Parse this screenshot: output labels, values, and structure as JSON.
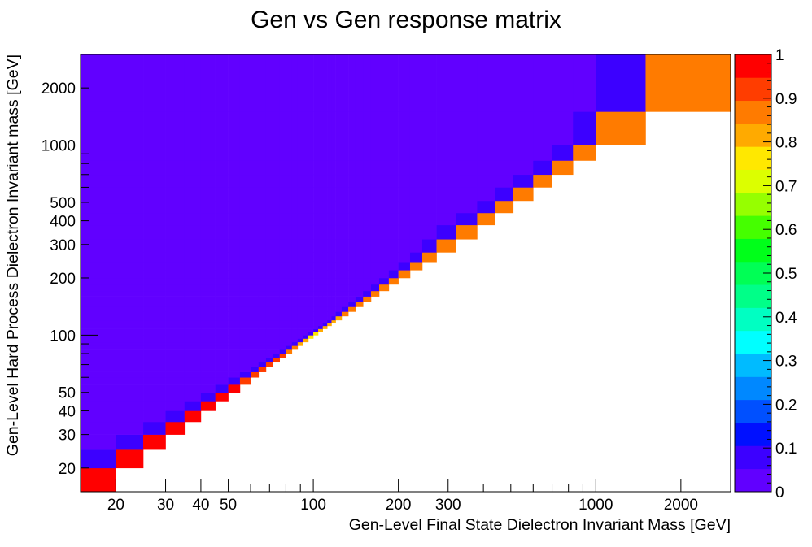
{
  "chart_data": {
    "type": "heatmap",
    "title": "Gen vs Gen response matrix",
    "xlabel": "Gen-Level Final State Dielectron Invariant Mass [GeV]",
    "ylabel": "Gen-Level Hard Process Dielectron Invariant mass [GeV]",
    "x_scale": "log",
    "y_scale": "log",
    "xlim": [
      15,
      3000
    ],
    "ylim": [
      15,
      3000
    ],
    "x_ticks": [
      20,
      30,
      40,
      50,
      100,
      200,
      300,
      1000,
      2000
    ],
    "x_tick_labels": [
      "20",
      "30",
      "40",
      "50",
      "100",
      "200",
      "300",
      "1000",
      "2000"
    ],
    "y_ticks": [
      20,
      30,
      40,
      50,
      100,
      200,
      300,
      400,
      500,
      1000,
      2000
    ],
    "y_tick_labels": [
      "20",
      "30",
      "40",
      "50",
      "100",
      "200",
      "300",
      "400",
      "500",
      "1000",
      "2000"
    ],
    "zlim": [
      0,
      1
    ],
    "colorbar_ticks": [
      0,
      0.1,
      0.2,
      0.3,
      0.4,
      0.5,
      0.6,
      0.7,
      0.8,
      0.9,
      1
    ],
    "colorbar_tick_labels": [
      "0",
      "0.1",
      "0.2",
      "0.3",
      "0.4",
      "0.5",
      "0.6",
      "0.7",
      "0.8",
      "0.9",
      "1"
    ],
    "palette": [
      "#6100ff",
      "#3c00ff",
      "#0010ff",
      "#0050ff",
      "#0088ff",
      "#00bbff",
      "#00ffff",
      "#00ffc2",
      "#00ff88",
      "#00ff55",
      "#00ff1a",
      "#45ff00",
      "#96ff00",
      "#dcff00",
      "#ffe800",
      "#ffaa00",
      "#ff7b00",
      "#ff3d00",
      "#ff0000"
    ],
    "bins_edges": [
      15,
      20,
      25,
      30,
      35,
      40,
      45,
      50,
      55,
      60,
      64,
      68,
      72,
      76,
      80,
      84,
      88,
      92,
      96,
      100,
      104,
      108,
      112,
      116,
      120,
      126,
      133,
      141,
      150,
      160,
      171,
      185,
      200,
      220,
      243,
      273,
      320,
      380,
      440,
      510,
      600,
      700,
      830,
      1000,
      1500,
      3000
    ],
    "diagonal_bins": [
      {
        "bin": 0,
        "value": 0.99
      },
      {
        "bin": 1,
        "value": 0.98
      },
      {
        "bin": 2,
        "value": 0.97
      },
      {
        "bin": 3,
        "value": 0.96
      },
      {
        "bin": 4,
        "value": 0.96
      },
      {
        "bin": 5,
        "value": 0.96
      },
      {
        "bin": 6,
        "value": 0.95
      },
      {
        "bin": 7,
        "value": 0.95
      },
      {
        "bin": 8,
        "value": 0.94
      },
      {
        "bin": 9,
        "value": 0.94
      },
      {
        "bin": 10,
        "value": 0.93
      },
      {
        "bin": 11,
        "value": 0.92
      },
      {
        "bin": 12,
        "value": 0.91
      },
      {
        "bin": 13,
        "value": 0.9
      },
      {
        "bin": 14,
        "value": 0.88
      },
      {
        "bin": 15,
        "value": 0.86
      },
      {
        "bin": 16,
        "value": 0.82
      },
      {
        "bin": 17,
        "value": 0.8
      },
      {
        "bin": 18,
        "value": 0.78
      },
      {
        "bin": 19,
        "value": 0.78
      },
      {
        "bin": 20,
        "value": 0.79
      },
      {
        "bin": 21,
        "value": 0.8
      },
      {
        "bin": 22,
        "value": 0.82
      },
      {
        "bin": 23,
        "value": 0.83
      },
      {
        "bin": 24,
        "value": 0.84
      },
      {
        "bin": 25,
        "value": 0.85
      },
      {
        "bin": 26,
        "value": 0.86
      },
      {
        "bin": 27,
        "value": 0.86
      },
      {
        "bin": 28,
        "value": 0.86
      },
      {
        "bin": 29,
        "value": 0.86
      },
      {
        "bin": 30,
        "value": 0.85
      },
      {
        "bin": 31,
        "value": 0.85
      },
      {
        "bin": 32,
        "value": 0.85
      },
      {
        "bin": 33,
        "value": 0.85
      },
      {
        "bin": 34,
        "value": 0.85
      },
      {
        "bin": 35,
        "value": 0.85
      },
      {
        "bin": 36,
        "value": 0.85
      },
      {
        "bin": 37,
        "value": 0.85
      },
      {
        "bin": 38,
        "value": 0.85
      },
      {
        "bin": 39,
        "value": 0.85
      },
      {
        "bin": 40,
        "value": 0.85
      },
      {
        "bin": 41,
        "value": 0.85
      },
      {
        "bin": 42,
        "value": 0.85
      },
      {
        "bin": 43,
        "value": 0.85
      },
      {
        "bin": 44,
        "value": 0.85
      }
    ],
    "first_offdiagonal_value": 0.08,
    "background_value": 0.03,
    "filled_x_extent_by_y_bin": [
      [
        0,
        8
      ],
      [
        0,
        14
      ],
      [
        0,
        14
      ],
      [
        0,
        19
      ],
      [
        0,
        22
      ],
      [
        0,
        24
      ],
      [
        0,
        26
      ],
      [
        0,
        28
      ],
      [
        0,
        30
      ],
      [
        0,
        31
      ],
      [
        0,
        31
      ],
      [
        0,
        32
      ],
      [
        0,
        32
      ],
      [
        0,
        33
      ],
      [
        0,
        33
      ],
      [
        0,
        33
      ],
      [
        0,
        34
      ],
      [
        0,
        34
      ],
      [
        0,
        34
      ],
      [
        0,
        35
      ],
      [
        0,
        35
      ],
      [
        0,
        35
      ],
      [
        0,
        36
      ],
      [
        0,
        36
      ],
      [
        0,
        36
      ],
      [
        0,
        37
      ],
      [
        0,
        37
      ],
      [
        0,
        37
      ],
      [
        0,
        37
      ],
      [
        0,
        38
      ],
      [
        0,
        38
      ],
      [
        0,
        44
      ],
      [
        0,
        44
      ],
      [
        0,
        44
      ],
      [
        0,
        44
      ],
      [
        0,
        44
      ],
      [
        0,
        44
      ],
      [
        0,
        44
      ],
      [
        0,
        44
      ],
      [
        0,
        44
      ],
      [
        0,
        44
      ],
      [
        0,
        44
      ],
      [
        0,
        44
      ],
      [
        0,
        44
      ],
      [
        0,
        44
      ]
    ]
  }
}
